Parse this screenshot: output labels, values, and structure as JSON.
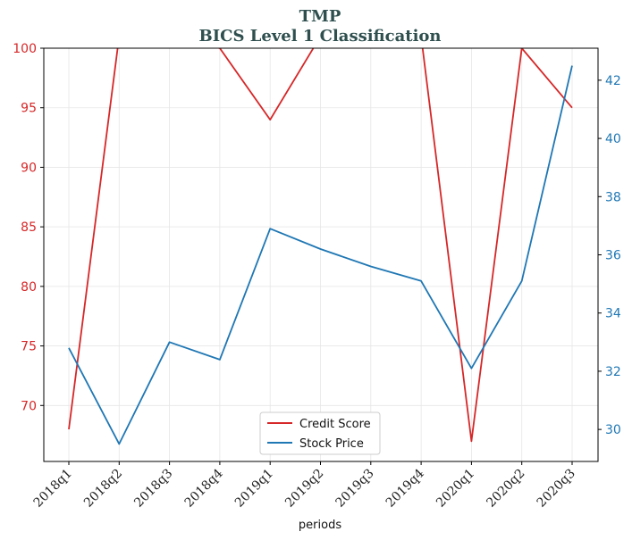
{
  "chart_data": {
    "type": "line",
    "title": "TMP",
    "subtitle": "BICS Level 1 Classification",
    "xlabel": "periods",
    "categories": [
      "2018q1",
      "2018q2",
      "2018q3",
      "2018q4",
      "2019q1",
      "2019q2",
      "2019q3",
      "2019q4",
      "2020q1",
      "2020q2",
      "2020q3"
    ],
    "left_axis": {
      "ylim": [
        65.3,
        100
      ],
      "ticks": [
        70,
        75,
        80,
        85,
        90,
        95,
        100
      ],
      "color": "#d62728"
    },
    "right_axis": {
      "ylim": [
        28.9,
        43.1
      ],
      "ticks": [
        30,
        32,
        34,
        36,
        38,
        40,
        42
      ],
      "color": "#1f77b4"
    },
    "series": [
      {
        "name": "Credit Score",
        "axis": "left",
        "color": "#d62728",
        "values": [
          68,
          101,
          101,
          100,
          94,
          101,
          101,
          101,
          67,
          100,
          95
        ]
      },
      {
        "name": "Stock Price",
        "axis": "right",
        "color": "#1f77b4",
        "values": [
          32.8,
          29.5,
          33.0,
          32.4,
          36.9,
          36.2,
          35.6,
          35.1,
          32.1,
          35.1,
          42.5
        ]
      }
    ],
    "grid": true,
    "legend_position": "bottom-center"
  }
}
